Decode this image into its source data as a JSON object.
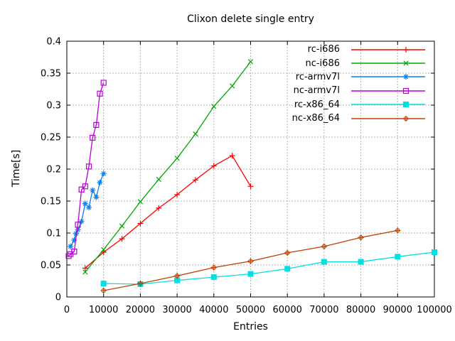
{
  "chart_data": {
    "type": "line",
    "title": "Clixon delete single entry",
    "xlabel": "Entries",
    "ylabel": "Time[s]",
    "xlim": [
      0,
      100000
    ],
    "ylim": [
      0,
      0.4
    ],
    "x_ticks": [
      "0",
      "10000",
      "20000",
      "30000",
      "40000",
      "50000",
      "60000",
      "70000",
      "80000",
      "90000",
      "100000"
    ],
    "y_ticks": [
      "0",
      "0.05",
      "0.1",
      "0.15",
      "0.2",
      "0.25",
      "0.3",
      "0.35",
      "0.4"
    ],
    "grid": "dashed-gray-major",
    "legend_position": "top-right-inside",
    "series": [
      {
        "name": "rc-i686",
        "color": "#ff0000",
        "marker": "plus",
        "x": [
          5000,
          10000,
          15000,
          20000,
          25000,
          30000,
          35000,
          40000,
          45000,
          50000
        ],
        "y": [
          0.045,
          0.07,
          0.091,
          0.115,
          0.139,
          0.16,
          0.183,
          0.205,
          0.221,
          0.173
        ]
      },
      {
        "name": "nc-i686",
        "color": "#00a800",
        "marker": "cross",
        "x": [
          5000,
          10000,
          15000,
          20000,
          25000,
          30000,
          35000,
          40000,
          45000,
          50000
        ],
        "y": [
          0.039,
          0.074,
          0.111,
          0.149,
          0.184,
          0.217,
          0.255,
          0.298,
          0.33,
          0.368
        ]
      },
      {
        "name": "rc-armv7l",
        "color": "#0a80f0",
        "marker": "asterisk",
        "x": [
          1000,
          2000,
          2500,
          3000,
          4000,
          5000,
          6000,
          7000,
          8000,
          9000,
          10000
        ],
        "y": [
          0.079,
          0.089,
          0.099,
          0.105,
          0.118,
          0.146,
          0.14,
          0.167,
          0.156,
          0.179,
          0.193
        ]
      },
      {
        "name": "nc-armv7l",
        "color": "#b800d8",
        "marker": "open-square",
        "x": [
          500,
          1000,
          2000,
          3000,
          4000,
          5000,
          6000,
          7000,
          8000,
          9000,
          10000
        ],
        "y": [
          0.064,
          0.067,
          0.071,
          0.113,
          0.168,
          0.173,
          0.204,
          0.249,
          0.269,
          0.318,
          0.335
        ]
      },
      {
        "name": "rc-x86_64",
        "color": "#00e0e0",
        "marker": "filled-square",
        "x": [
          10000,
          20000,
          30000,
          40000,
          50000,
          60000,
          70000,
          80000,
          90000,
          100000
        ],
        "y": [
          0.021,
          0.02,
          0.026,
          0.031,
          0.036,
          0.044,
          0.055,
          0.055,
          0.063,
          0.07
        ]
      },
      {
        "name": "nc-x86_64",
        "color": "#c04000",
        "marker": "circle-plus",
        "x": [
          10000,
          20000,
          30000,
          40000,
          50000,
          60000,
          70000,
          80000,
          90000
        ],
        "y": [
          0.01,
          0.021,
          0.033,
          0.046,
          0.056,
          0.069,
          0.079,
          0.093,
          0.104
        ]
      }
    ]
  }
}
